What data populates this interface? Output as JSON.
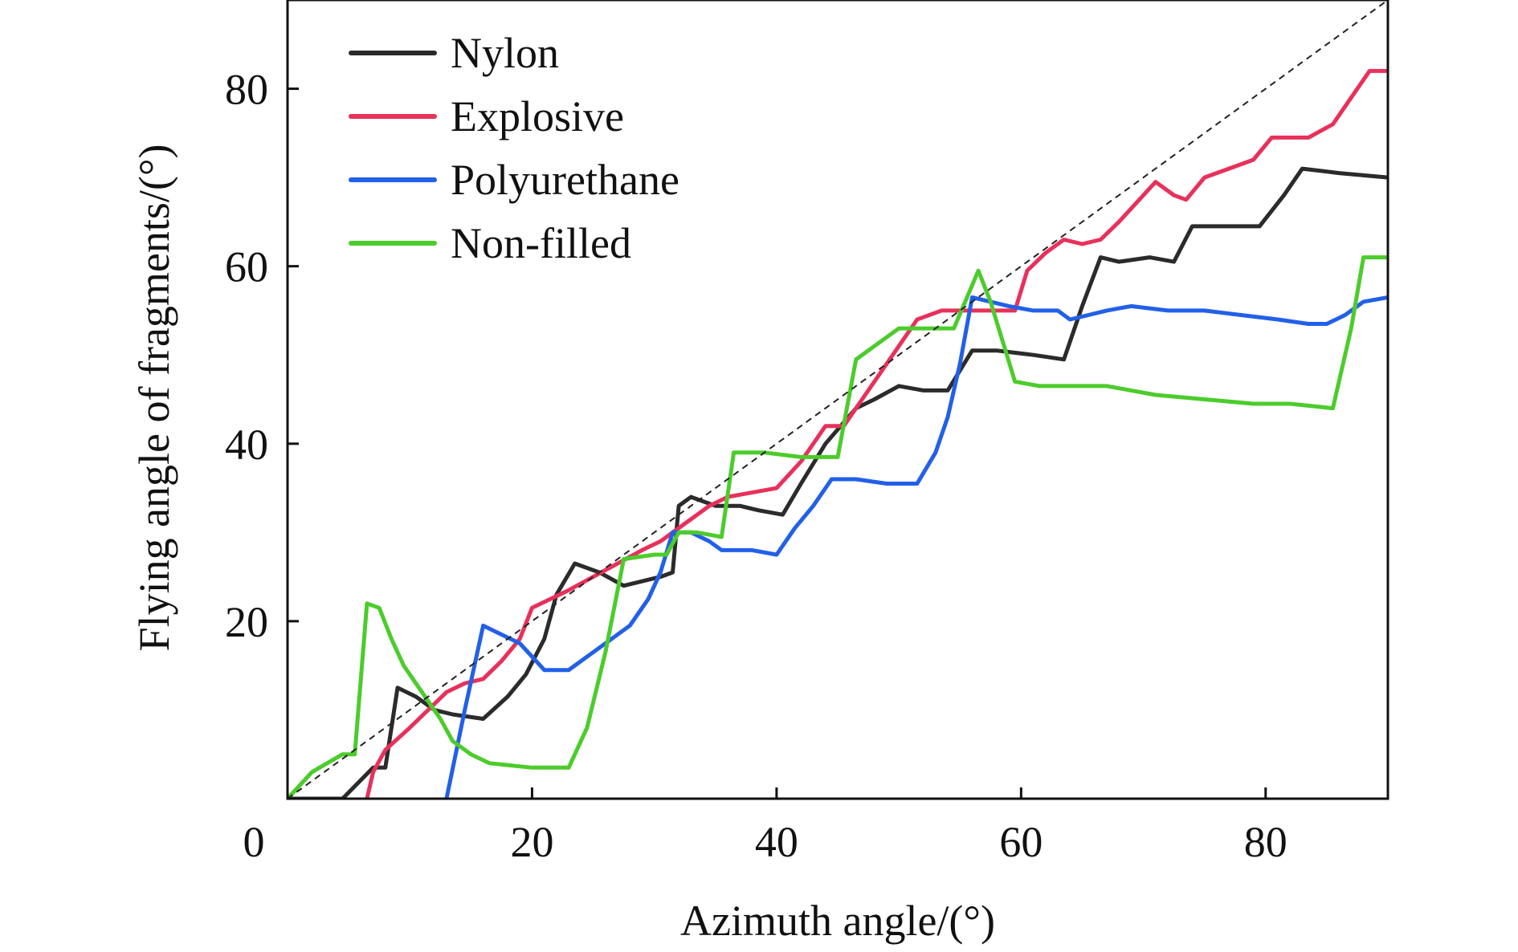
{
  "chart_data": {
    "type": "line",
    "title": "",
    "xlabel": "Azimuth angle/(°)",
    "ylabel": "Flying angle of fragments/(°)",
    "xlim": [
      0,
      90
    ],
    "ylim": [
      0,
      90
    ],
    "x_ticks": [
      0,
      20,
      40,
      60,
      80
    ],
    "x_tick_labels": [
      "0",
      "20",
      "40",
      "60",
      "80"
    ],
    "y_ticks": [
      20,
      40,
      60,
      80
    ],
    "y_tick_labels": [
      "20",
      "40",
      "60",
      "80"
    ],
    "grid": false,
    "legend_position": "top-left",
    "reference_line": {
      "style": "dashed",
      "color": "#222222",
      "points": [
        [
          0,
          0
        ],
        [
          90,
          90
        ]
      ]
    },
    "series": [
      {
        "name": "Nylon",
        "color": "#2b2b2b",
        "points": [
          [
            0,
            0
          ],
          [
            4.5,
            0
          ],
          [
            7,
            3.5
          ],
          [
            8,
            3.5
          ],
          [
            9,
            12.5
          ],
          [
            10.5,
            11.5
          ],
          [
            12,
            10
          ],
          [
            13.5,
            9.5
          ],
          [
            16,
            9
          ],
          [
            18,
            11.5
          ],
          [
            19.5,
            14
          ],
          [
            21,
            18
          ],
          [
            22,
            23
          ],
          [
            23.5,
            26.5
          ],
          [
            25.5,
            25.5
          ],
          [
            27.5,
            24
          ],
          [
            30.5,
            25
          ],
          [
            31.5,
            25.5
          ],
          [
            32,
            33
          ],
          [
            33,
            34
          ],
          [
            35,
            33
          ],
          [
            37,
            33
          ],
          [
            38.5,
            32.5
          ],
          [
            40.5,
            32
          ],
          [
            42,
            35.5
          ],
          [
            44,
            40
          ],
          [
            46.5,
            44
          ],
          [
            48,
            45
          ],
          [
            50,
            46.5
          ],
          [
            52,
            46
          ],
          [
            54,
            46
          ],
          [
            56,
            50.5
          ],
          [
            58,
            50.5
          ],
          [
            61,
            50
          ],
          [
            63.5,
            49.5
          ],
          [
            65,
            55.5
          ],
          [
            66.5,
            61
          ],
          [
            68,
            60.5
          ],
          [
            70.5,
            61
          ],
          [
            72.5,
            60.5
          ],
          [
            74,
            64.5
          ],
          [
            76,
            64.5
          ],
          [
            78,
            64.5
          ],
          [
            79.5,
            64.5
          ],
          [
            81.5,
            68
          ],
          [
            83,
            71
          ],
          [
            86,
            70.5
          ],
          [
            90,
            70
          ]
        ]
      },
      {
        "name": "Explosive",
        "color": "#e8315a",
        "points": [
          [
            6.5,
            0
          ],
          [
            7,
            3
          ],
          [
            8,
            5.5
          ],
          [
            10,
            8
          ],
          [
            11.5,
            10
          ],
          [
            13,
            12
          ],
          [
            14.5,
            13
          ],
          [
            16,
            13.5
          ],
          [
            17.5,
            15.5
          ],
          [
            19,
            18
          ],
          [
            20,
            21.5
          ],
          [
            21.5,
            22.5
          ],
          [
            23,
            23.5
          ],
          [
            25,
            25
          ],
          [
            27,
            26.5
          ],
          [
            29,
            28
          ],
          [
            30.5,
            29
          ],
          [
            31.5,
            30
          ],
          [
            33,
            31.5
          ],
          [
            34.5,
            33
          ],
          [
            36,
            34
          ],
          [
            38,
            34.5
          ],
          [
            40,
            35
          ],
          [
            42,
            38
          ],
          [
            44,
            42
          ],
          [
            45.5,
            42
          ],
          [
            47,
            45
          ],
          [
            48.5,
            48
          ],
          [
            50,
            51
          ],
          [
            51.5,
            54
          ],
          [
            53.5,
            55
          ],
          [
            55.5,
            55
          ],
          [
            58,
            55
          ],
          [
            59.5,
            55
          ],
          [
            60.5,
            59.5
          ],
          [
            62,
            61.5
          ],
          [
            63.5,
            63
          ],
          [
            65,
            62.5
          ],
          [
            66.5,
            63
          ],
          [
            68,
            65
          ],
          [
            70,
            68
          ],
          [
            71,
            69.5
          ],
          [
            72.5,
            68
          ],
          [
            73.5,
            67.5
          ],
          [
            75,
            70
          ],
          [
            77,
            71
          ],
          [
            79,
            72
          ],
          [
            80.5,
            74.5
          ],
          [
            82,
            74.5
          ],
          [
            83.5,
            74.5
          ],
          [
            85.5,
            76
          ],
          [
            87,
            79
          ],
          [
            88.5,
            82
          ],
          [
            90,
            82
          ]
        ]
      },
      {
        "name": "Polyurethane",
        "color": "#2260e8",
        "points": [
          [
            13,
            0
          ],
          [
            14.5,
            10
          ],
          [
            16,
            19.5
          ],
          [
            17.5,
            18.5
          ],
          [
            19,
            17.5
          ],
          [
            21,
            14.5
          ],
          [
            23,
            14.5
          ],
          [
            24.5,
            16
          ],
          [
            26,
            17.5
          ],
          [
            28,
            19.5
          ],
          [
            29.5,
            22.5
          ],
          [
            30.5,
            25.5
          ],
          [
            31.5,
            30
          ],
          [
            33,
            30
          ],
          [
            34.5,
            29
          ],
          [
            35.5,
            28
          ],
          [
            38,
            28
          ],
          [
            40,
            27.5
          ],
          [
            41.5,
            30.5
          ],
          [
            43,
            33
          ],
          [
            44.5,
            36
          ],
          [
            46.5,
            36
          ],
          [
            49,
            35.5
          ],
          [
            51.5,
            35.5
          ],
          [
            53,
            39
          ],
          [
            54,
            43
          ],
          [
            55,
            49
          ],
          [
            56,
            56.5
          ],
          [
            57.5,
            56
          ],
          [
            59,
            55.5
          ],
          [
            61,
            55
          ],
          [
            63,
            55
          ],
          [
            64,
            54
          ],
          [
            65.5,
            54.5
          ],
          [
            67,
            55
          ],
          [
            69,
            55.5
          ],
          [
            72,
            55
          ],
          [
            75,
            55
          ],
          [
            78,
            54.5
          ],
          [
            81,
            54
          ],
          [
            83.5,
            53.5
          ],
          [
            85,
            53.5
          ],
          [
            86.5,
            54.5
          ],
          [
            88,
            56
          ],
          [
            90,
            56.5
          ]
        ]
      },
      {
        "name": "Non-filled",
        "color": "#4ccc2c",
        "points": [
          [
            0,
            0
          ],
          [
            2,
            3
          ],
          [
            4.5,
            5
          ],
          [
            5.5,
            5
          ],
          [
            6.5,
            22
          ],
          [
            7.5,
            21.5
          ],
          [
            8.5,
            18
          ],
          [
            9.5,
            15
          ],
          [
            11,
            12
          ],
          [
            12.5,
            9
          ],
          [
            13.5,
            6.5
          ],
          [
            15,
            5
          ],
          [
            16.5,
            4
          ],
          [
            20,
            3.5
          ],
          [
            23,
            3.5
          ],
          [
            24.5,
            8
          ],
          [
            26,
            16.5
          ],
          [
            27.5,
            27
          ],
          [
            30,
            27.5
          ],
          [
            31,
            27.5
          ],
          [
            32,
            30
          ],
          [
            33.5,
            30
          ],
          [
            35.5,
            29.5
          ],
          [
            36.5,
            39
          ],
          [
            39,
            39
          ],
          [
            42,
            38.5
          ],
          [
            45,
            38.5
          ],
          [
            46.5,
            49.5
          ],
          [
            48.5,
            51.5
          ],
          [
            50,
            53
          ],
          [
            52.5,
            53
          ],
          [
            54.5,
            53
          ],
          [
            56.5,
            59.5
          ],
          [
            57.5,
            56
          ],
          [
            59.5,
            47
          ],
          [
            61.5,
            46.5
          ],
          [
            64,
            46.5
          ],
          [
            67,
            46.5
          ],
          [
            71,
            45.5
          ],
          [
            75,
            45
          ],
          [
            79,
            44.5
          ],
          [
            82,
            44.5
          ],
          [
            85.5,
            44
          ],
          [
            87,
            53
          ],
          [
            88,
            61
          ],
          [
            90,
            61
          ]
        ]
      }
    ]
  }
}
